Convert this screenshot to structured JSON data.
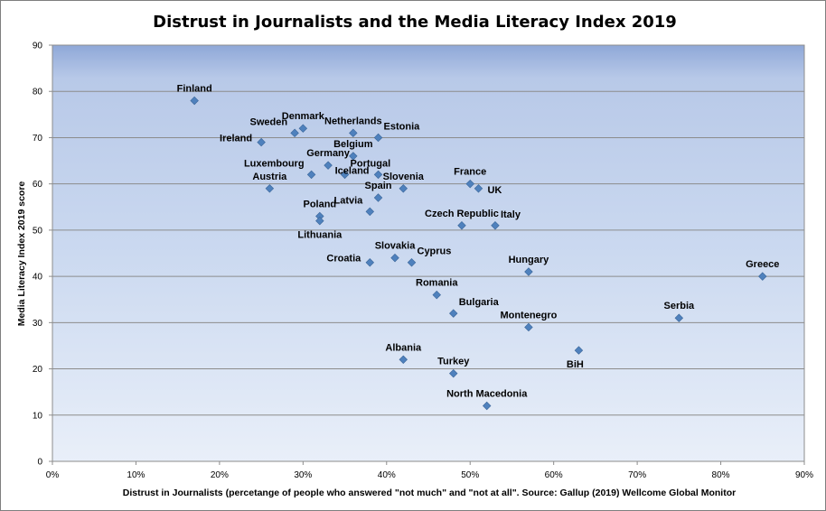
{
  "chart_data": {
    "type": "scatter",
    "title": "Distrust in Journalists and the Media Literacy Index 2019",
    "xlabel": "Distrust in Journalists (percetange of people who answered  \"not much\" and  \"not at all\". Source: Gallup (2019) Wellcome Global Monitor",
    "ylabel": "Media Literacy Index 2019 score",
    "xlim": [
      0,
      90
    ],
    "ylim": [
      0,
      90
    ],
    "x_ticks": [
      0,
      10,
      20,
      30,
      40,
      50,
      60,
      70,
      80,
      90
    ],
    "x_tick_labels": [
      "0%",
      "10%",
      "20%",
      "30%",
      "40%",
      "50%",
      "60%",
      "70%",
      "80%",
      "90%"
    ],
    "y_ticks": [
      0,
      10,
      20,
      30,
      40,
      50,
      60,
      70,
      80,
      90
    ],
    "y_tick_labels": [
      "0",
      "10",
      "20",
      "30",
      "40",
      "50",
      "60",
      "70",
      "80",
      "90"
    ],
    "grid": "horizontal",
    "marker_color": "#4f81bd",
    "points": [
      {
        "label": "Finland",
        "x": 17,
        "y": 78,
        "pos": "above"
      },
      {
        "label": "Denmark",
        "x": 30,
        "y": 72,
        "pos": "above"
      },
      {
        "label": "Netherlands",
        "x": 36,
        "y": 71,
        "pos": "above"
      },
      {
        "label": "Sweden",
        "x": 29,
        "y": 71,
        "pos": "above-left"
      },
      {
        "label": "Ireland",
        "x": 25,
        "y": 69,
        "pos": "left"
      },
      {
        "label": "Estonia",
        "x": 39,
        "y": 70,
        "pos": "above-right"
      },
      {
        "label": "Belgium",
        "x": 36,
        "y": 66,
        "pos": "above"
      },
      {
        "label": "Germany",
        "x": 33,
        "y": 64,
        "pos": "above"
      },
      {
        "label": "Portugal",
        "x": 35,
        "y": 62,
        "pos": "above-right"
      },
      {
        "label": "Luxembourg",
        "x": 31,
        "y": 62,
        "pos": "above-left"
      },
      {
        "label": "Iceland",
        "x": 39,
        "y": 62,
        "pos": "left"
      },
      {
        "label": "Slovenia",
        "x": 42,
        "y": 59,
        "pos": "above"
      },
      {
        "label": "Austria",
        "x": 26,
        "y": 59,
        "pos": "above"
      },
      {
        "label": "France",
        "x": 50,
        "y": 60,
        "pos": "above"
      },
      {
        "label": "UK",
        "x": 51,
        "y": 59,
        "pos": "right"
      },
      {
        "label": "Spain",
        "x": 39,
        "y": 57,
        "pos": "above"
      },
      {
        "label": "Poland",
        "x": 32,
        "y": 53,
        "pos": "above"
      },
      {
        "label": "Lithuania",
        "x": 32,
        "y": 52,
        "pos": "below"
      },
      {
        "label": "Latvia",
        "x": 38,
        "y": 54,
        "pos": "above-left"
      },
      {
        "label": "Czech Republic",
        "x": 49,
        "y": 51,
        "pos": "above"
      },
      {
        "label": "Italy",
        "x": 53,
        "y": 51,
        "pos": "above-right"
      },
      {
        "label": "Slovakia",
        "x": 41,
        "y": 44,
        "pos": "above"
      },
      {
        "label": "Cyprus",
        "x": 43,
        "y": 43,
        "pos": "above-right"
      },
      {
        "label": "Croatia",
        "x": 38,
        "y": 43,
        "pos": "left"
      },
      {
        "label": "Hungary",
        "x": 57,
        "y": 41,
        "pos": "above"
      },
      {
        "label": "Greece",
        "x": 85,
        "y": 40,
        "pos": "above"
      },
      {
        "label": "Romania",
        "x": 46,
        "y": 36,
        "pos": "above"
      },
      {
        "label": "Bulgaria",
        "x": 48,
        "y": 32,
        "pos": "above-right"
      },
      {
        "label": "Montenegro",
        "x": 57,
        "y": 29,
        "pos": "above"
      },
      {
        "label": "Serbia",
        "x": 75,
        "y": 31,
        "pos": "above"
      },
      {
        "label": "BiH",
        "x": 63,
        "y": 24,
        "pos": "below-left"
      },
      {
        "label": "Albania",
        "x": 42,
        "y": 22,
        "pos": "above"
      },
      {
        "label": "Turkey",
        "x": 48,
        "y": 19,
        "pos": "above"
      },
      {
        "label": "North Macedonia",
        "x": 52,
        "y": 12,
        "pos": "above"
      }
    ]
  }
}
